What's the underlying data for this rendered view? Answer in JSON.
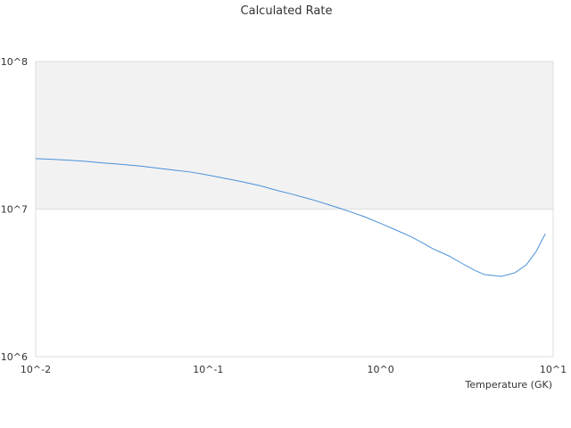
{
  "chart_data": {
    "type": "line",
    "title": "Calculated Rate",
    "xlabel": "Temperature (GK)",
    "ylabel": "",
    "x_scale": "log",
    "y_scale": "log",
    "xlim": [
      0.01,
      10
    ],
    "ylim": [
      1000000,
      100000000
    ],
    "x_ticks": [
      "10^-2",
      "10^-1",
      "10^0",
      "10^1"
    ],
    "y_ticks": [
      "10^6",
      "10^7",
      "10^8"
    ],
    "shaded_band": {
      "from": 10000000,
      "to": 100000000,
      "color": "#f2f2f2"
    },
    "series_color": "#4a90d9",
    "grid": false,
    "series": [
      {
        "x": [
          0.01,
          0.012,
          0.015,
          0.018,
          0.02,
          0.025,
          0.03,
          0.04,
          0.05,
          0.06,
          0.08,
          0.1,
          0.12,
          0.15,
          0.2,
          0.25,
          0.3,
          0.4,
          0.5,
          0.6,
          0.7,
          0.8,
          1.0,
          1.2,
          1.5,
          1.8,
          2.0,
          2.5,
          3.0,
          3.5,
          4.0,
          5.0,
          6.0,
          7.0,
          8.0,
          9.0
        ],
        "y": [
          22000000,
          21800000,
          21500000,
          21200000,
          21000000,
          20500000,
          20200000,
          19600000,
          19000000,
          18500000,
          17800000,
          17000000,
          16300000,
          15500000,
          14400000,
          13400000,
          12700000,
          11600000,
          10700000,
          10000000,
          9400000,
          8900000,
          8000000,
          7300000,
          6500000,
          5800000,
          5400000,
          4800000,
          4250000,
          3850000,
          3600000,
          3500000,
          3700000,
          4200000,
          5200000,
          6800000
        ]
      }
    ]
  }
}
